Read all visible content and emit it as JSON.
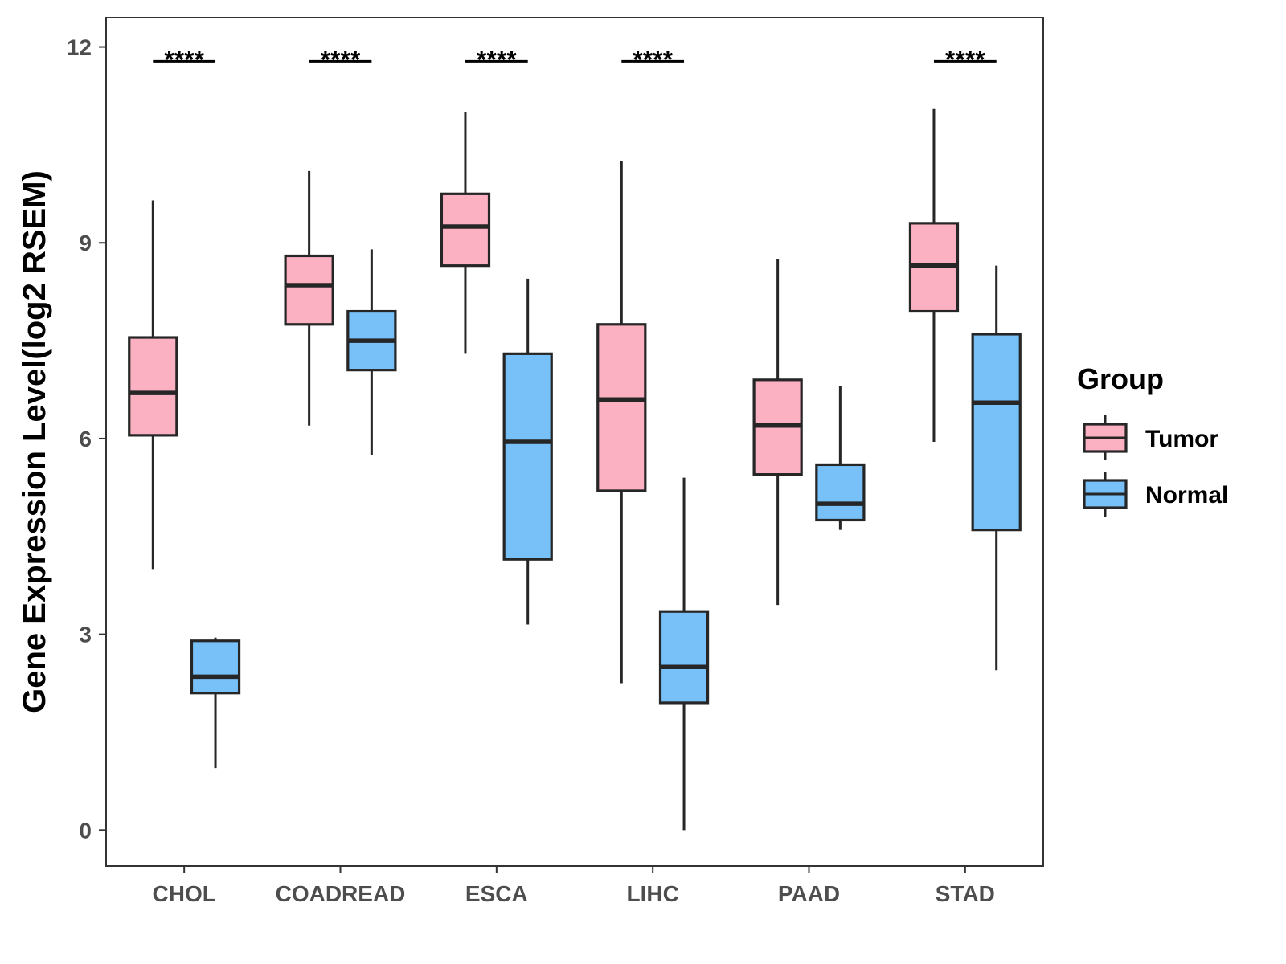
{
  "chart_data": {
    "type": "box",
    "title": "",
    "xlabel": "",
    "ylabel": "Gene Expression Level(log2 RSEM)",
    "ylim": [
      -0.55,
      12.45
    ],
    "yticks": [
      0,
      3,
      6,
      9,
      12
    ],
    "grid": false,
    "legend": {
      "title": "Group",
      "placement": "right"
    },
    "categories": [
      "CHOL",
      "COADREAD",
      "ESCA",
      "LIHC",
      "PAAD",
      "STAD"
    ],
    "series": [
      {
        "name": "Tumor",
        "color": "#fcb1c3",
        "boxes": [
          {
            "category": "CHOL",
            "min": 4.0,
            "q1": 6.05,
            "median": 6.7,
            "q3": 7.55,
            "max": 9.65
          },
          {
            "category": "COADREAD",
            "min": 6.2,
            "q1": 7.75,
            "median": 8.35,
            "q3": 8.8,
            "max": 10.1
          },
          {
            "category": "ESCA",
            "min": 7.3,
            "q1": 8.65,
            "median": 9.25,
            "q3": 9.75,
            "max": 11.0
          },
          {
            "category": "LIHC",
            "min": 2.25,
            "q1": 5.2,
            "median": 6.6,
            "q3": 7.75,
            "max": 10.25
          },
          {
            "category": "PAAD",
            "min": 3.45,
            "q1": 5.45,
            "median": 6.2,
            "q3": 6.9,
            "max": 8.75
          },
          {
            "category": "STAD",
            "min": 5.95,
            "q1": 7.95,
            "median": 8.65,
            "q3": 9.3,
            "max": 11.05
          }
        ]
      },
      {
        "name": "Normal",
        "color": "#78c0f8",
        "boxes": [
          {
            "category": "CHOL",
            "min": 0.95,
            "q1": 2.1,
            "median": 2.35,
            "q3": 2.9,
            "max": 2.95
          },
          {
            "category": "COADREAD",
            "min": 5.75,
            "q1": 7.05,
            "median": 7.5,
            "q3": 7.95,
            "max": 8.9
          },
          {
            "category": "ESCA",
            "min": 3.15,
            "q1": 4.15,
            "median": 5.95,
            "q3": 7.3,
            "max": 8.45
          },
          {
            "category": "LIHC",
            "min": 0.0,
            "q1": 1.95,
            "median": 2.5,
            "q3": 3.35,
            "max": 5.4
          },
          {
            "category": "PAAD",
            "min": 4.6,
            "q1": 4.75,
            "median": 5.0,
            "q3": 5.6,
            "max": 6.8
          },
          {
            "category": "STAD",
            "min": 2.45,
            "q1": 4.6,
            "median": 6.55,
            "q3": 7.6,
            "max": 8.65
          }
        ]
      }
    ],
    "significance": [
      {
        "category": "CHOL",
        "label": "****"
      },
      {
        "category": "COADREAD",
        "label": "****"
      },
      {
        "category": "ESCA",
        "label": "****"
      },
      {
        "category": "LIHC",
        "label": "****"
      },
      {
        "category": "STAD",
        "label": "****"
      }
    ]
  }
}
